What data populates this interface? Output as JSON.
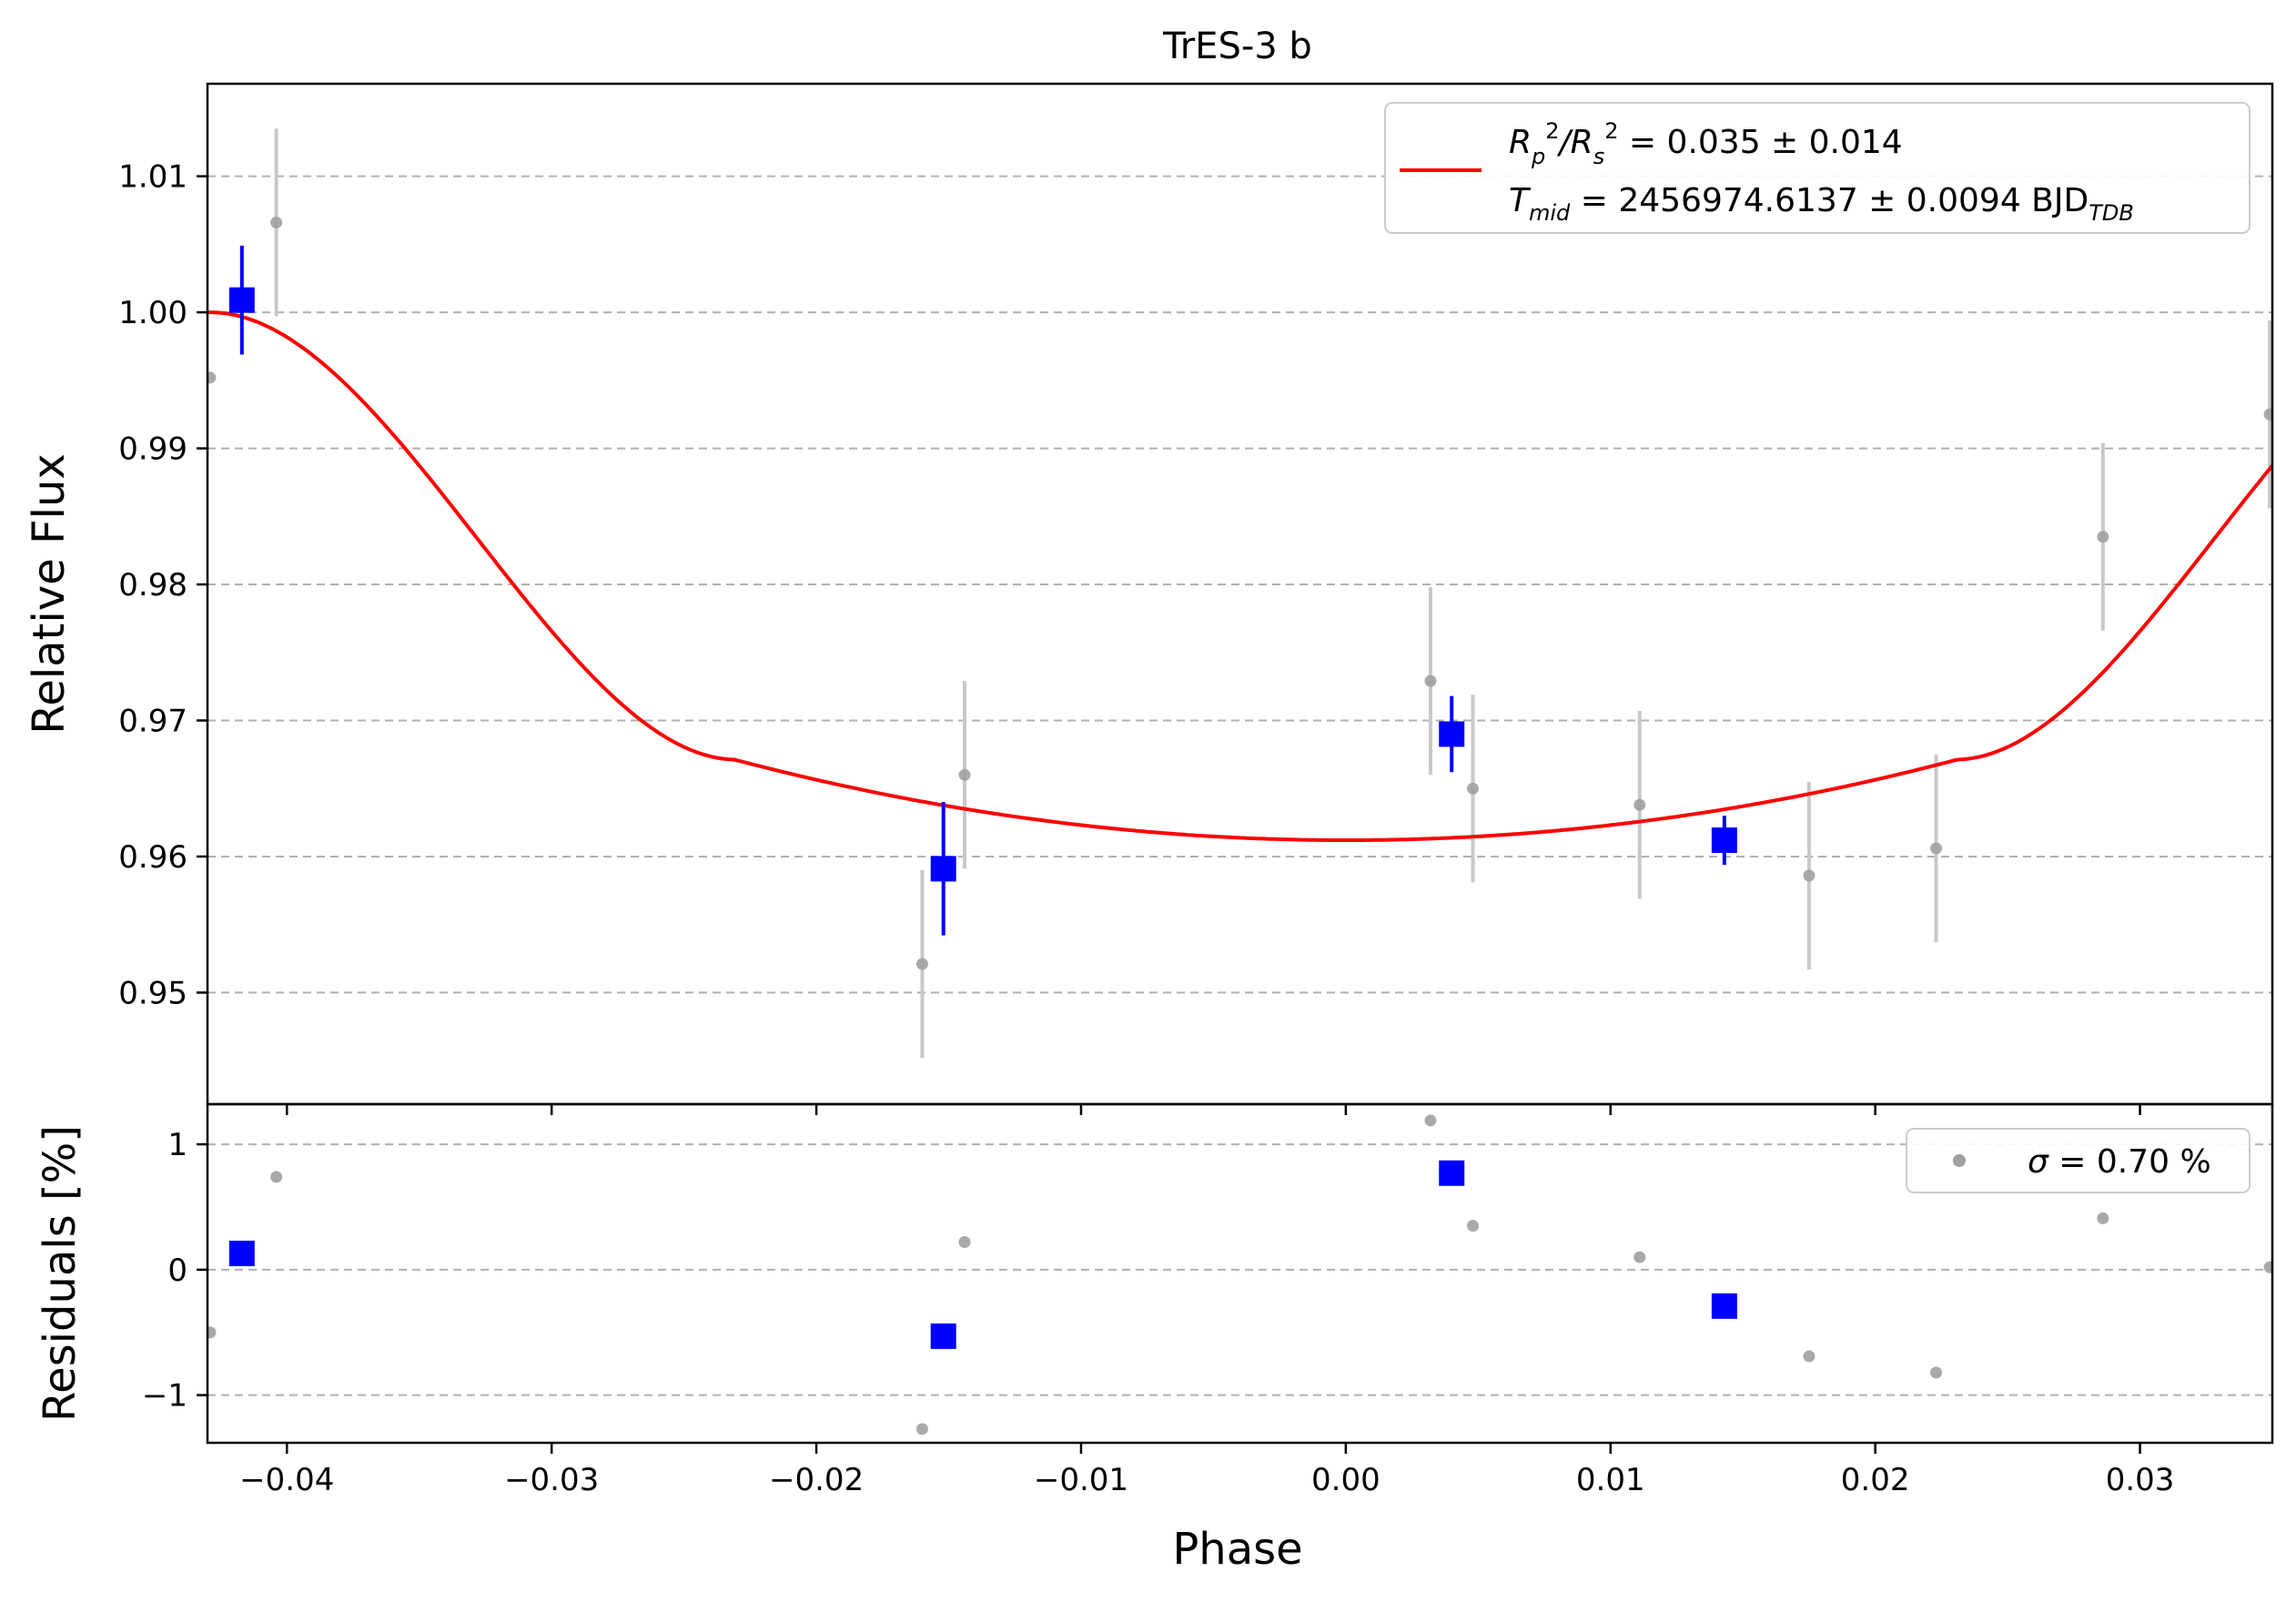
{
  "colors": {
    "model": "#ff0000",
    "binned": "#0000ff",
    "raw": "#a0a0a0",
    "raw_err": "#c8c8c8",
    "grid": "#b0b0b0"
  },
  "chart_data": [
    {
      "type": "scatter",
      "title": "TrES-3 b",
      "xlabel": "",
      "ylabel": "Relative Flux",
      "xlim": [
        -0.043,
        0.035
      ],
      "ylim": [
        0.9418,
        1.0168
      ],
      "yticks": [
        0.95,
        0.96,
        0.97,
        0.98,
        0.99,
        1.0,
        1.01
      ],
      "ytick_labels": [
        "0.95",
        "0.96",
        "0.97",
        "0.98",
        "0.99",
        "1.00",
        "1.01"
      ],
      "grid": "horizontal dashed",
      "legend": {
        "placement": "top-right",
        "line1": {
          "parts": [
            "R",
            "p",
            "2",
            "/R",
            "s",
            "2",
            " = 0.035 ± 0.014"
          ]
        },
        "line2": {
          "parts": [
            "T",
            "mid",
            " = 2456974.6137 ± 0.0094 BJD",
            "TDB"
          ]
        }
      },
      "series": [
        {
          "kind": "raw",
          "points": [
            {
              "x": -0.0429,
              "y": 0.9952,
              "err": 0.0
            },
            {
              "x": -0.0404,
              "y": 1.0066,
              "err": 0.0069
            },
            {
              "x": -0.016,
              "y": 0.9521,
              "err": 0.0069
            },
            {
              "x": -0.0144,
              "y": 0.966,
              "err": 0.0069
            },
            {
              "x": 0.0032,
              "y": 0.9729,
              "err": 0.0069
            },
            {
              "x": 0.0048,
              "y": 0.965,
              "err": 0.0069
            },
            {
              "x": 0.0111,
              "y": 0.9638,
              "err": 0.0069
            },
            {
              "x": 0.0175,
              "y": 0.9586,
              "err": 0.0069
            },
            {
              "x": 0.0223,
              "y": 0.9606,
              "err": 0.0069
            },
            {
              "x": 0.0286,
              "y": 0.9835,
              "err": 0.0069
            },
            {
              "x": 0.0349,
              "y": 0.9925,
              "err": 0.0069
            }
          ]
        },
        {
          "kind": "binned",
          "points": [
            {
              "x": -0.0417,
              "y": 1.0009,
              "err": 0.004
            },
            {
              "x": -0.0152,
              "y": 0.9591,
              "err": 0.0049
            },
            {
              "x": 0.004,
              "y": 0.969,
              "err": 0.0028
            },
            {
              "x": 0.0143,
              "y": 0.9612,
              "err": 0.0018
            }
          ]
        },
        {
          "kind": "model",
          "t14": 0.0858,
          "t23": 0.0462,
          "depth": 0.0388,
          "u1": 0.45,
          "u2": 0.2
        }
      ]
    },
    {
      "type": "scatter",
      "title": "",
      "xlabel": "Phase",
      "ylabel": "Residuals [%]",
      "xlim": [
        -0.043,
        0.035
      ],
      "ylim": [
        -1.38,
        1.32
      ],
      "xticks": [
        -0.04,
        -0.03,
        -0.02,
        -0.01,
        0.0,
        0.01,
        0.02,
        0.03
      ],
      "xtick_labels": [
        "−0.04",
        "−0.03",
        "−0.02",
        "−0.01",
        "0.00",
        "0.01",
        "0.02",
        "0.03"
      ],
      "yticks": [
        -1,
        0,
        1
      ],
      "ytick_labels": [
        "−1",
        "0",
        "1"
      ],
      "grid": "horizontal dashed",
      "legend": {
        "placement": "top-right",
        "sigma_symbol": "σ",
        "text": " = 0.70 %"
      },
      "series": [
        {
          "kind": "raw",
          "points": [
            {
              "x": -0.0429,
              "y": -0.5
            },
            {
              "x": -0.0404,
              "y": 0.74
            },
            {
              "x": -0.016,
              "y": -1.27
            },
            {
              "x": -0.0144,
              "y": 0.22
            },
            {
              "x": 0.0032,
              "y": 1.19
            },
            {
              "x": 0.0048,
              "y": 0.35
            },
            {
              "x": 0.0111,
              "y": 0.1
            },
            {
              "x": 0.0175,
              "y": -0.69
            },
            {
              "x": 0.0223,
              "y": -0.82
            },
            {
              "x": 0.0286,
              "y": 0.41
            },
            {
              "x": 0.0349,
              "y": 0.02
            }
          ]
        },
        {
          "kind": "binned",
          "points": [
            {
              "x": -0.0417,
              "y": 0.13
            },
            {
              "x": -0.0152,
              "y": -0.53
            },
            {
              "x": 0.004,
              "y": 0.77
            },
            {
              "x": 0.0143,
              "y": -0.29
            }
          ]
        }
      ]
    }
  ]
}
